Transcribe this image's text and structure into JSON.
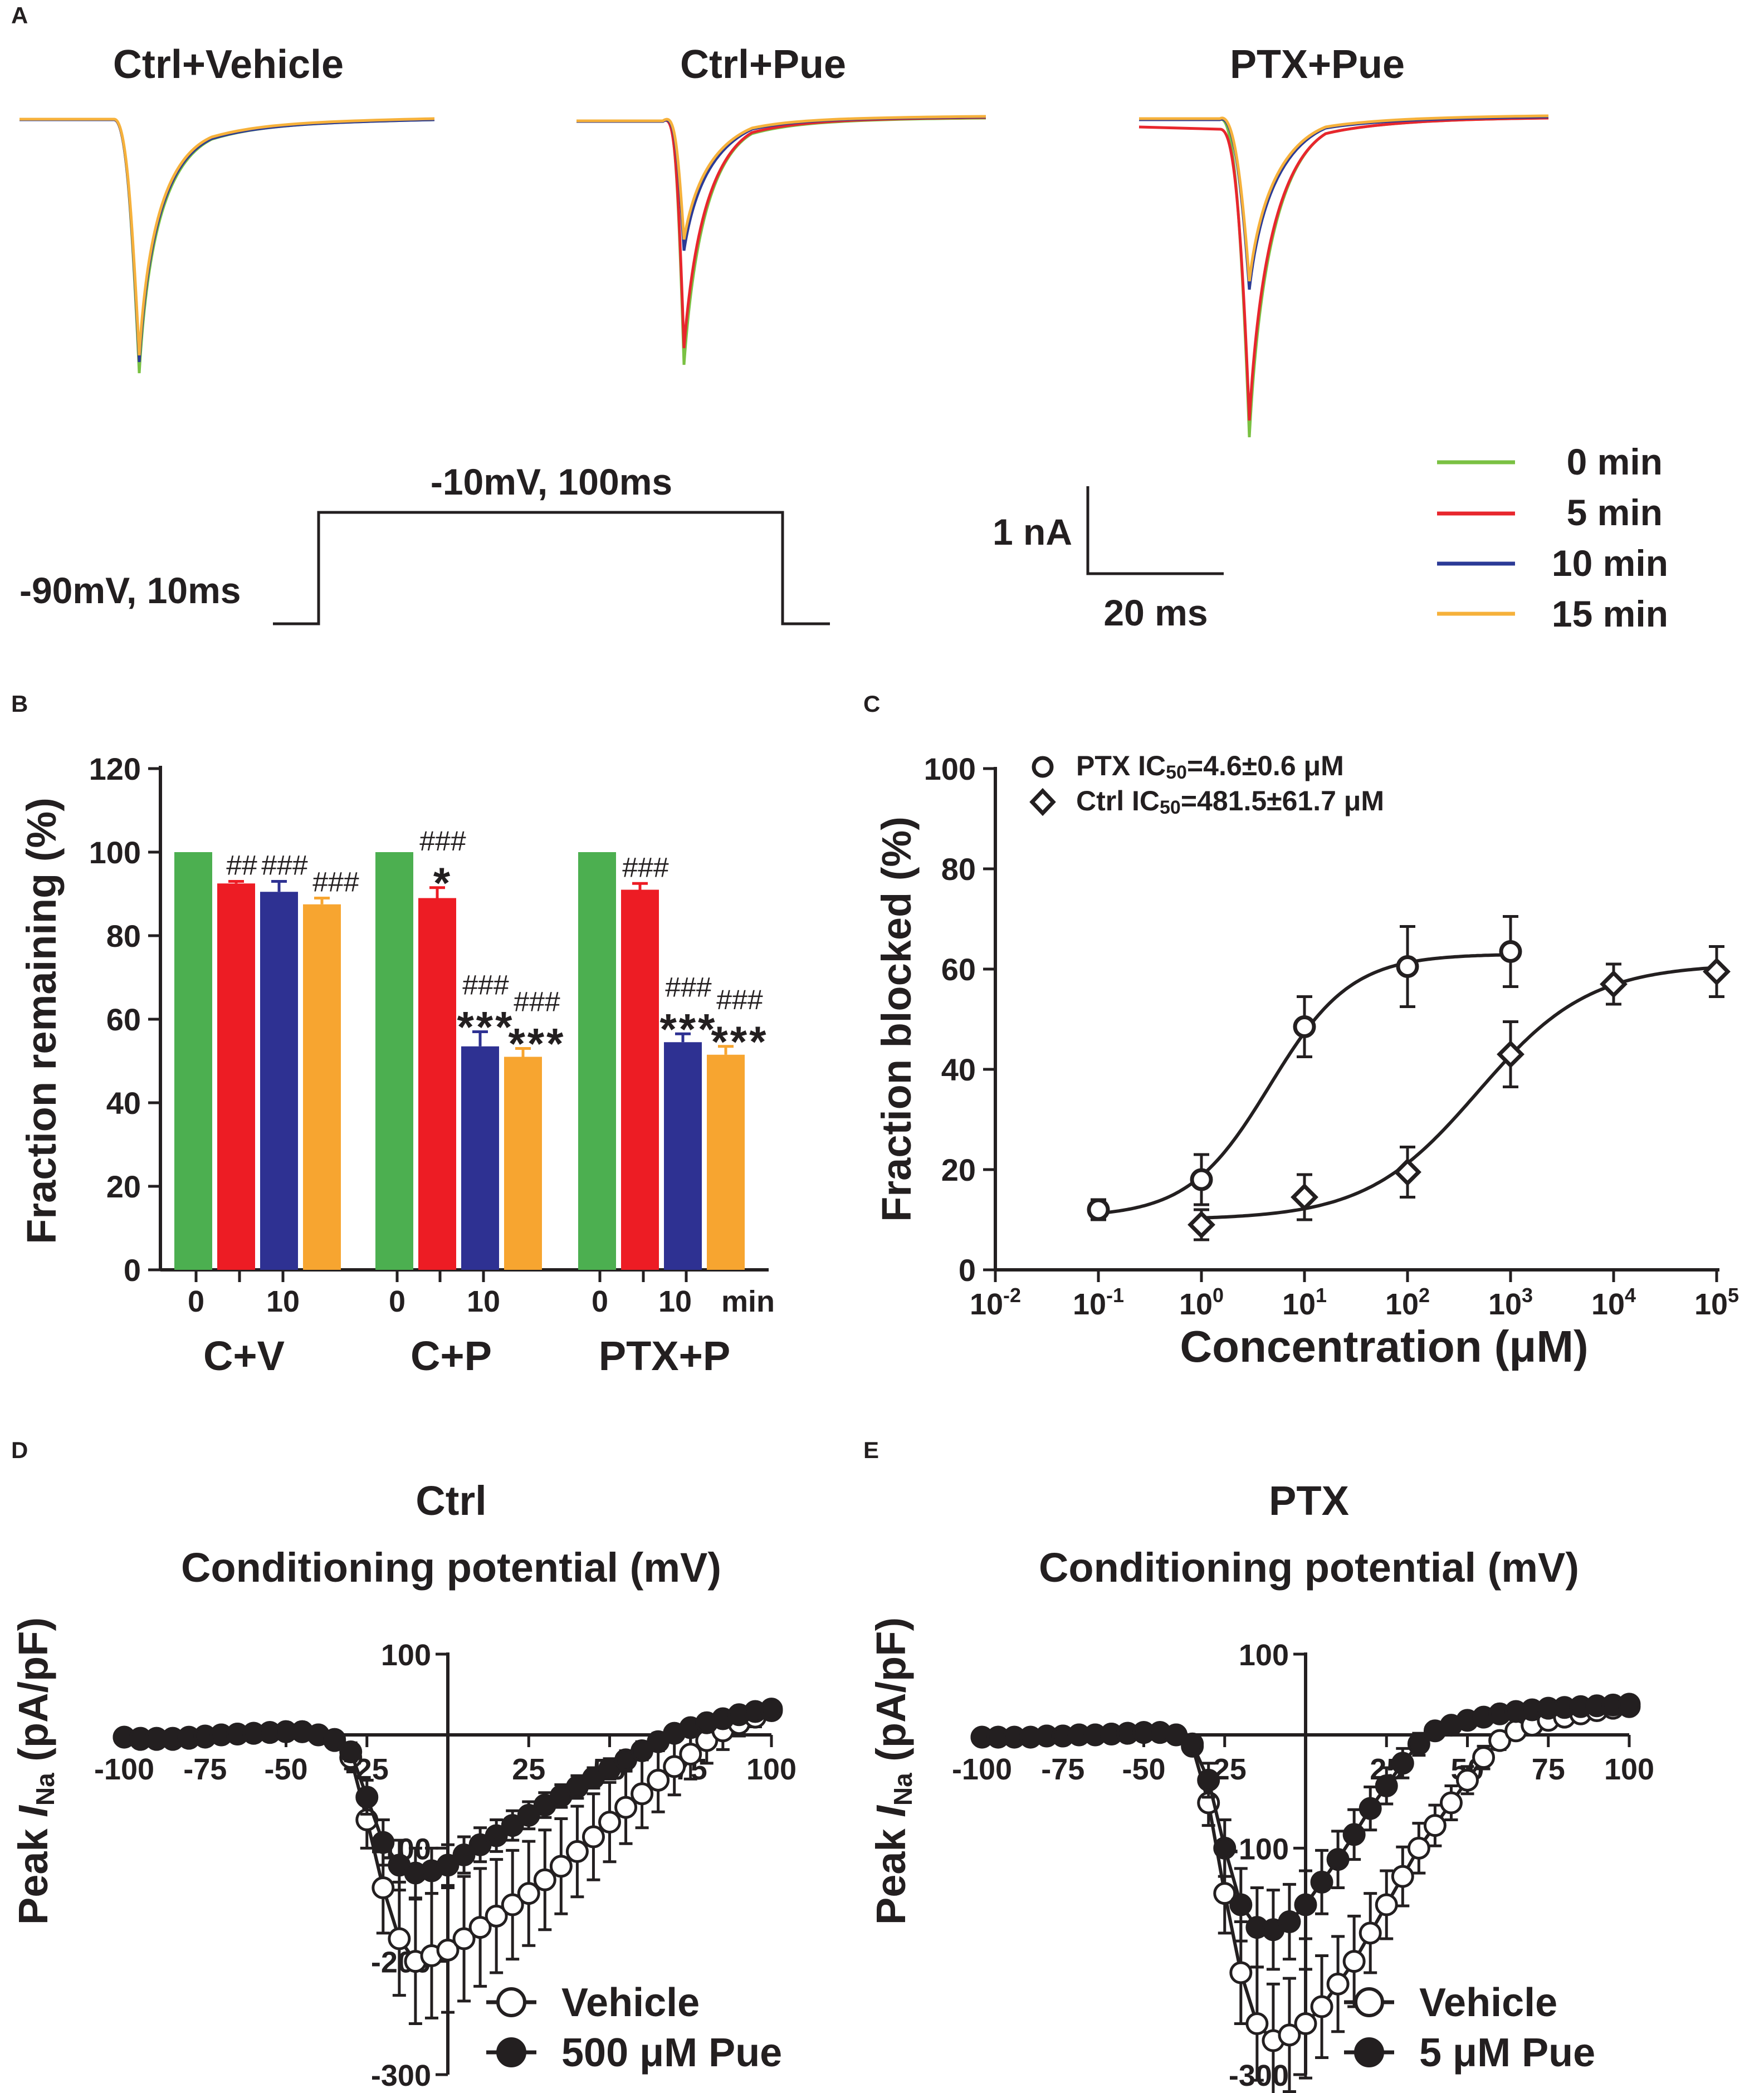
{
  "colors": {
    "green": "#4caf50",
    "red": "#ed1c24",
    "blue": "#2e3192",
    "orange": "#f7a530",
    "trace_green": "#7ac143",
    "trace_red": "#e8262d",
    "trace_blue": "#2b3a96",
    "trace_orange": "#f6b13b",
    "ink": "#231f20"
  },
  "panelA": {
    "label": "A",
    "titles": [
      "Ctrl+Vehicle",
      "Ctrl+Pue",
      "PTX+Pue"
    ],
    "protocol": {
      "hold": "-90mV, 10ms",
      "step": "-10mV, 100ms"
    },
    "scale": {
      "y": "1 nA",
      "x": "20 ms"
    },
    "legend": [
      "0 min",
      "5 min",
      "10 min",
      "15 min"
    ]
  },
  "chart_data": [
    {
      "panel": "B",
      "type": "bar",
      "ylabel": "Fraction remaining (%)",
      "ylim": [
        0,
        120
      ],
      "yticks": [
        "0",
        "20",
        "40",
        "60",
        "80",
        "100",
        "120"
      ],
      "xtick_labels": [
        "0",
        "10",
        "0",
        "10",
        "0",
        "10 min"
      ],
      "groups": [
        "C+V",
        "C+P",
        "PTX+P"
      ],
      "series": [
        {
          "name": "0 min",
          "values": [
            100,
            100,
            100
          ],
          "errors": [
            0,
            0,
            0
          ]
        },
        {
          "name": "5 min",
          "values": [
            92.5,
            89,
            91
          ],
          "errors": [
            0.5,
            2.5,
            1.5
          ]
        },
        {
          "name": "10 min",
          "values": [
            90.5,
            53.5,
            54.5
          ],
          "errors": [
            2.5,
            3.5,
            2
          ]
        },
        {
          "name": "15 min",
          "values": [
            87.5,
            51,
            51.5
          ],
          "errors": [
            1.5,
            2,
            2
          ]
        }
      ],
      "annotations": [
        {
          "group": 0,
          "bar": 1,
          "hash": "##",
          "star": ""
        },
        {
          "group": 0,
          "bar": 2,
          "hash": "###",
          "star": ""
        },
        {
          "group": 0,
          "bar": 3,
          "hash": "###",
          "star": ""
        },
        {
          "group": 1,
          "bar": 1,
          "hash": "###",
          "star": "*"
        },
        {
          "group": 1,
          "bar": 2,
          "hash": "###",
          "star": "***"
        },
        {
          "group": 1,
          "bar": 3,
          "hash": "###",
          "star": "***"
        },
        {
          "group": 2,
          "bar": 1,
          "hash": "###",
          "star": ""
        },
        {
          "group": 2,
          "bar": 2,
          "hash": "###",
          "star": "***"
        },
        {
          "group": 2,
          "bar": 3,
          "hash": "###",
          "star": "***"
        }
      ]
    },
    {
      "panel": "C",
      "type": "scatter",
      "xlabel": "Concentration (μM)",
      "ylabel": "Fraction blocked (%)",
      "xscale": "log10",
      "xlim_exp": [
        -2,
        5
      ],
      "ylim": [
        0,
        100
      ],
      "yticks": [
        "0",
        "20",
        "40",
        "60",
        "80",
        "100"
      ],
      "xtick_exps": [
        "-2",
        "-1",
        "0",
        "1",
        "2",
        "3",
        "4",
        "5"
      ],
      "series": [
        {
          "name": "PTX",
          "legend": "PTX IC50=4.6±0.6 μM",
          "legend_prefix": "PTX IC",
          "legend_sub": "50",
          "legend_suffix": "=4.6±0.6 μM",
          "marker": "circle",
          "x_exp": [
            -1,
            0,
            1,
            2,
            3
          ],
          "y": [
            12,
            18,
            48.5,
            60.5,
            63.5
          ],
          "err": [
            2,
            5,
            6,
            8,
            7
          ],
          "fit": {
            "bottom": 10.5,
            "top": 63,
            "ic50": 4.6,
            "hill": 1.1
          }
        },
        {
          "name": "Ctrl",
          "legend": "Ctrl IC50=481.5±61.7 μM",
          "legend_prefix": "Ctrl IC",
          "legend_sub": "50",
          "legend_suffix": "=481.5±61.7 μM",
          "marker": "diamond",
          "x_exp": [
            0,
            1,
            2,
            3,
            4,
            5
          ],
          "y": [
            9,
            14.5,
            19.5,
            43,
            57,
            59.5
          ],
          "err": [
            3,
            4.5,
            5,
            6.5,
            4,
            5
          ],
          "fit": {
            "bottom": 10,
            "top": 61,
            "ic50": 481.5,
            "hill": 0.8
          }
        }
      ]
    },
    {
      "panel": "D",
      "type": "line",
      "title": "Ctrl",
      "xlabel": "Conditioning potential (mV)",
      "ylabel": "Peak I_Na (pA/pF)",
      "ylabel_prefix": "Peak ",
      "ylabel_italic": "I",
      "ylabel_sub": "Na",
      "ylabel_suffix": " (pA/pF)",
      "xlim": [
        -100,
        100
      ],
      "ylim": [
        -300,
        100
      ],
      "xticks": [
        "-100",
        "-75",
        "-50",
        "-25",
        "25",
        "50",
        "75",
        "100"
      ],
      "yticks": [
        "100",
        "-100",
        "-200",
        "-300"
      ],
      "x": [
        -100,
        -95,
        -90,
        -85,
        -80,
        -75,
        -70,
        -65,
        -60,
        -55,
        -50,
        -45,
        -40,
        -35,
        -30,
        -25,
        -20,
        -15,
        -10,
        -5,
        0,
        5,
        10,
        15,
        20,
        25,
        30,
        35,
        40,
        45,
        50,
        55,
        60,
        65,
        70,
        75,
        80,
        85,
        90,
        95,
        100
      ],
      "series": [
        {
          "name": "Vehicle",
          "marker": "open-circle",
          "y": [
            -2,
            -4,
            -4,
            -4,
            -3,
            -2,
            0,
            1,
            2,
            3,
            4,
            4,
            0,
            -5,
            -20,
            -75,
            -135,
            -180,
            -200,
            -195,
            -190,
            -180,
            -170,
            -160,
            -150,
            -140,
            -128,
            -116,
            -103,
            -90,
            -77,
            -64,
            -52,
            -40,
            -28,
            -17,
            -5,
            5,
            14,
            22,
            30
          ],
          "err": [
            0,
            0,
            0,
            0,
            0,
            0,
            0,
            0,
            0,
            0,
            0,
            0,
            2,
            5,
            10,
            25,
            40,
            50,
            55,
            55,
            55,
            55,
            52,
            50,
            48,
            46,
            44,
            42,
            40,
            38,
            35,
            32,
            30,
            28,
            25,
            22,
            20,
            18,
            15,
            12,
            10
          ]
        },
        {
          "name": "500 μM Pue",
          "marker": "filled-circle",
          "y": [
            -2,
            -3,
            -3,
            -3,
            -2,
            -1,
            0,
            1,
            2,
            3,
            4,
            4,
            0,
            -4,
            -15,
            -55,
            -95,
            -115,
            -122,
            -120,
            -115,
            -106,
            -97,
            -89,
            -80,
            -71,
            -62,
            -54,
            -46,
            -38,
            -30,
            -22,
            -14,
            -6,
            2,
            9,
            15,
            20,
            25,
            29,
            32
          ],
          "err": [
            0,
            0,
            0,
            0,
            0,
            0,
            0,
            0,
            0,
            0,
            0,
            0,
            2,
            4,
            8,
            15,
            20,
            22,
            22,
            20,
            18,
            16,
            15,
            14,
            13,
            12,
            11,
            10,
            10,
            9,
            9,
            8,
            8,
            8,
            7,
            7,
            6,
            6,
            5,
            5,
            5
          ]
        }
      ]
    },
    {
      "panel": "E",
      "type": "line",
      "title": "PTX",
      "xlabel": "Conditioning potential (mV)",
      "ylabel": "Peak I_Na (pA/pF)",
      "ylabel_prefix": "Peak ",
      "ylabel_italic": "I",
      "ylabel_sub": "Na",
      "ylabel_suffix": " (pA/pF)",
      "xlim": [
        -100,
        100
      ],
      "ylim": [
        -300,
        100
      ],
      "xticks": [
        "-100",
        "-75",
        "-50",
        "-25",
        "25",
        "50",
        "75",
        "100"
      ],
      "yticks": [
        "100",
        "-100",
        "-300"
      ],
      "x": [
        -100,
        -95,
        -90,
        -85,
        -80,
        -75,
        -70,
        -65,
        -60,
        -55,
        -50,
        -45,
        -40,
        -35,
        -30,
        -25,
        -20,
        -15,
        -10,
        -5,
        0,
        5,
        10,
        15,
        20,
        25,
        30,
        35,
        40,
        45,
        50,
        55,
        60,
        65,
        70,
        75,
        80,
        85,
        90,
        95,
        100
      ],
      "series": [
        {
          "name": "Vehicle",
          "marker": "open-circle",
          "y": [
            -2,
            -2,
            -2,
            -2,
            -1,
            -1,
            0,
            0,
            1,
            2,
            3,
            3,
            0,
            -10,
            -60,
            -140,
            -210,
            -255,
            -270,
            -265,
            -255,
            -240,
            -220,
            -200,
            -175,
            -150,
            -125,
            -100,
            -80,
            -60,
            -40,
            -20,
            -5,
            5,
            12,
            18,
            22,
            26,
            30,
            33,
            35
          ],
          "err": [
            0,
            0,
            0,
            0,
            0,
            0,
            0,
            0,
            0,
            0,
            0,
            0,
            2,
            5,
            20,
            35,
            45,
            50,
            50,
            50,
            48,
            45,
            42,
            40,
            35,
            30,
            26,
            22,
            18,
            15,
            12,
            10,
            8,
            7,
            6,
            5,
            5,
            5,
            5,
            5,
            5
          ]
        },
        {
          "name": "5 μM Pue",
          "marker": "filled-circle",
          "y": [
            -2,
            -2,
            -2,
            -2,
            -1,
            -1,
            0,
            0,
            1,
            2,
            3,
            3,
            0,
            -8,
            -40,
            -100,
            -150,
            -170,
            -172,
            -165,
            -150,
            -130,
            -110,
            -88,
            -65,
            -45,
            -25,
            -8,
            5,
            12,
            18,
            22,
            26,
            29,
            31,
            33,
            34,
            35,
            36,
            37,
            38
          ],
          "err": [
            0,
            0,
            0,
            0,
            0,
            0,
            0,
            0,
            0,
            0,
            0,
            0,
            2,
            5,
            15,
            25,
            32,
            35,
            35,
            33,
            30,
            28,
            25,
            22,
            19,
            16,
            13,
            10,
            8,
            7,
            6,
            6,
            5,
            5,
            5,
            5,
            5,
            5,
            5,
            5,
            5
          ]
        }
      ]
    }
  ],
  "panelB": {
    "label": "B",
    "ylabel": "Fraction remaining (%)",
    "groups": [
      "C+V",
      "C+P",
      "PTX+P"
    ],
    "min_label": "min"
  },
  "panelC": {
    "label": "C",
    "xlabel": "Concentration (μM)",
    "ylabel": "Fraction blocked (%)"
  },
  "panelD": {
    "label": "D",
    "title": "Ctrl",
    "subtitle": "Conditioning potential (mV)"
  },
  "panelE": {
    "label": "E",
    "title": "PTX",
    "subtitle": "Conditioning potential (mV)"
  }
}
